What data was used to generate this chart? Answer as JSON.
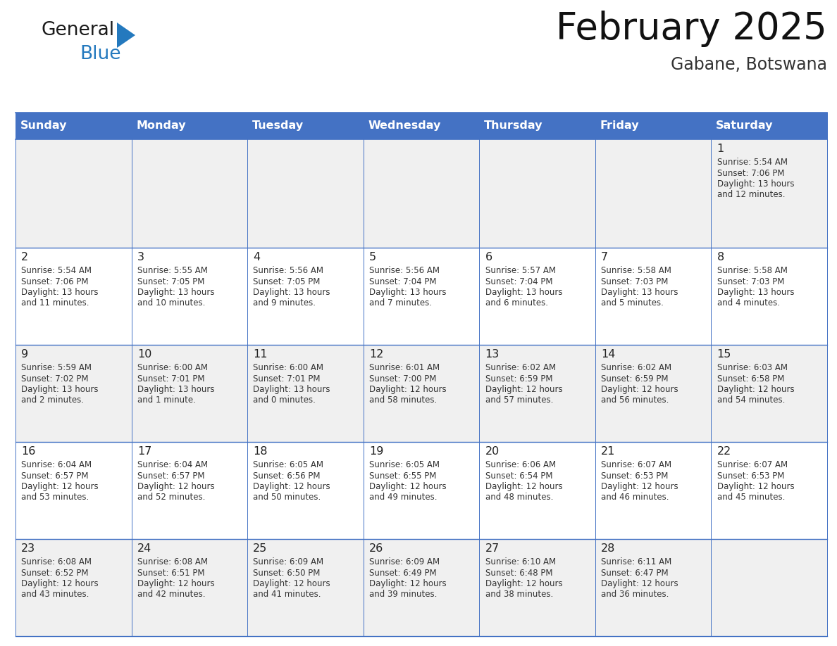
{
  "title": "February 2025",
  "subtitle": "Gabane, Botswana",
  "days_of_week": [
    "Sunday",
    "Monday",
    "Tuesday",
    "Wednesday",
    "Thursday",
    "Friday",
    "Saturday"
  ],
  "header_bg": "#4472C4",
  "header_text": "#FFFFFF",
  "row_bg": [
    "#F0F0F0",
    "#FFFFFF",
    "#F0F0F0",
    "#FFFFFF",
    "#F0F0F0"
  ],
  "cell_border_color": "#4472C4",
  "day_number_color": "#222222",
  "info_text_color": "#333333",
  "title_color": "#111111",
  "subtitle_color": "#333333",
  "logo_general_color": "#1a1a1a",
  "logo_blue_color": "#2479BE",
  "logo_triangle_color": "#2479BE",
  "calendar_data": [
    [
      null,
      null,
      null,
      null,
      null,
      null,
      {
        "day": 1,
        "sunrise": "5:54 AM",
        "sunset": "7:06 PM",
        "daylight_hours": 13,
        "daylight_minutes": 12
      }
    ],
    [
      {
        "day": 2,
        "sunrise": "5:54 AM",
        "sunset": "7:06 PM",
        "daylight_hours": 13,
        "daylight_minutes": 11
      },
      {
        "day": 3,
        "sunrise": "5:55 AM",
        "sunset": "7:05 PM",
        "daylight_hours": 13,
        "daylight_minutes": 10
      },
      {
        "day": 4,
        "sunrise": "5:56 AM",
        "sunset": "7:05 PM",
        "daylight_hours": 13,
        "daylight_minutes": 9
      },
      {
        "day": 5,
        "sunrise": "5:56 AM",
        "sunset": "7:04 PM",
        "daylight_hours": 13,
        "daylight_minutes": 7
      },
      {
        "day": 6,
        "sunrise": "5:57 AM",
        "sunset": "7:04 PM",
        "daylight_hours": 13,
        "daylight_minutes": 6
      },
      {
        "day": 7,
        "sunrise": "5:58 AM",
        "sunset": "7:03 PM",
        "daylight_hours": 13,
        "daylight_minutes": 5
      },
      {
        "day": 8,
        "sunrise": "5:58 AM",
        "sunset": "7:03 PM",
        "daylight_hours": 13,
        "daylight_minutes": 4
      }
    ],
    [
      {
        "day": 9,
        "sunrise": "5:59 AM",
        "sunset": "7:02 PM",
        "daylight_hours": 13,
        "daylight_minutes": 2
      },
      {
        "day": 10,
        "sunrise": "6:00 AM",
        "sunset": "7:01 PM",
        "daylight_hours": 13,
        "daylight_minutes": 1
      },
      {
        "day": 11,
        "sunrise": "6:00 AM",
        "sunset": "7:01 PM",
        "daylight_hours": 13,
        "daylight_minutes": 0
      },
      {
        "day": 12,
        "sunrise": "6:01 AM",
        "sunset": "7:00 PM",
        "daylight_hours": 12,
        "daylight_minutes": 58
      },
      {
        "day": 13,
        "sunrise": "6:02 AM",
        "sunset": "6:59 PM",
        "daylight_hours": 12,
        "daylight_minutes": 57
      },
      {
        "day": 14,
        "sunrise": "6:02 AM",
        "sunset": "6:59 PM",
        "daylight_hours": 12,
        "daylight_minutes": 56
      },
      {
        "day": 15,
        "sunrise": "6:03 AM",
        "sunset": "6:58 PM",
        "daylight_hours": 12,
        "daylight_minutes": 54
      }
    ],
    [
      {
        "day": 16,
        "sunrise": "6:04 AM",
        "sunset": "6:57 PM",
        "daylight_hours": 12,
        "daylight_minutes": 53
      },
      {
        "day": 17,
        "sunrise": "6:04 AM",
        "sunset": "6:57 PM",
        "daylight_hours": 12,
        "daylight_minutes": 52
      },
      {
        "day": 18,
        "sunrise": "6:05 AM",
        "sunset": "6:56 PM",
        "daylight_hours": 12,
        "daylight_minutes": 50
      },
      {
        "day": 19,
        "sunrise": "6:05 AM",
        "sunset": "6:55 PM",
        "daylight_hours": 12,
        "daylight_minutes": 49
      },
      {
        "day": 20,
        "sunrise": "6:06 AM",
        "sunset": "6:54 PM",
        "daylight_hours": 12,
        "daylight_minutes": 48
      },
      {
        "day": 21,
        "sunrise": "6:07 AM",
        "sunset": "6:53 PM",
        "daylight_hours": 12,
        "daylight_minutes": 46
      },
      {
        "day": 22,
        "sunrise": "6:07 AM",
        "sunset": "6:53 PM",
        "daylight_hours": 12,
        "daylight_minutes": 45
      }
    ],
    [
      {
        "day": 23,
        "sunrise": "6:08 AM",
        "sunset": "6:52 PM",
        "daylight_hours": 12,
        "daylight_minutes": 43
      },
      {
        "day": 24,
        "sunrise": "6:08 AM",
        "sunset": "6:51 PM",
        "daylight_hours": 12,
        "daylight_minutes": 42
      },
      {
        "day": 25,
        "sunrise": "6:09 AM",
        "sunset": "6:50 PM",
        "daylight_hours": 12,
        "daylight_minutes": 41
      },
      {
        "day": 26,
        "sunrise": "6:09 AM",
        "sunset": "6:49 PM",
        "daylight_hours": 12,
        "daylight_minutes": 39
      },
      {
        "day": 27,
        "sunrise": "6:10 AM",
        "sunset": "6:48 PM",
        "daylight_hours": 12,
        "daylight_minutes": 38
      },
      {
        "day": 28,
        "sunrise": "6:11 AM",
        "sunset": "6:47 PM",
        "daylight_hours": 12,
        "daylight_minutes": 36
      },
      null
    ]
  ]
}
